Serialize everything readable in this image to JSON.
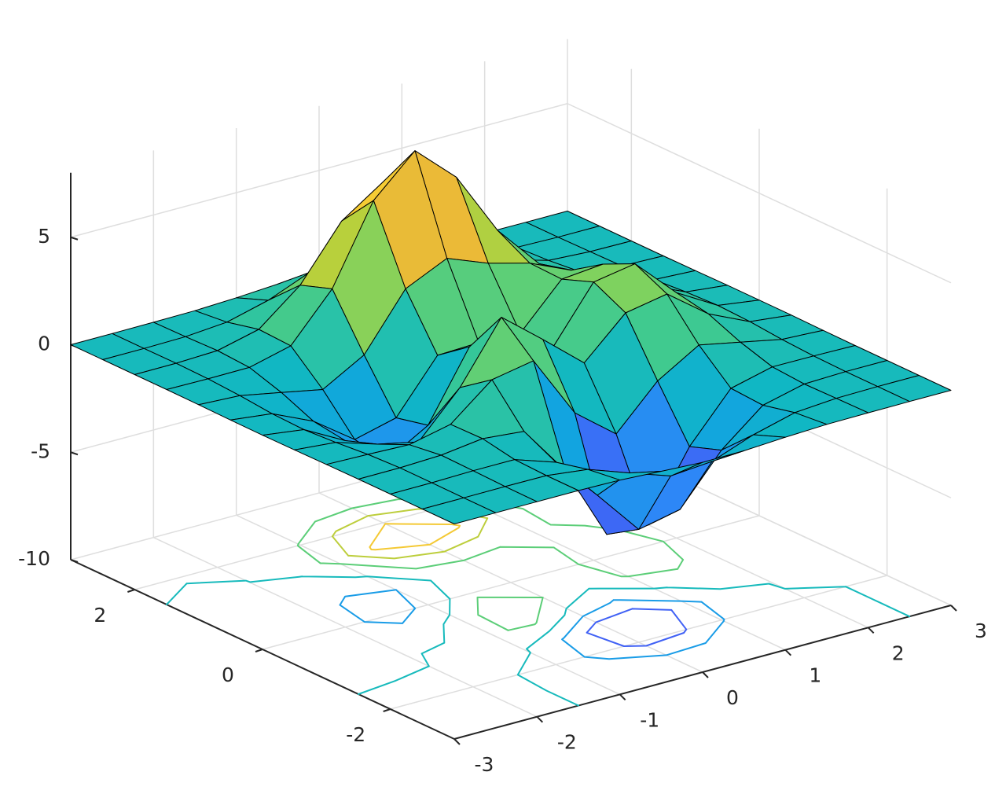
{
  "chart_data": {
    "type": "surfc",
    "x": [
      -3,
      -2.5,
      -2,
      -1.5,
      -1,
      -0.5,
      0,
      0.5,
      1,
      1.5,
      2,
      2.5,
      3
    ],
    "y": [
      -3,
      -2.5,
      -2,
      -1.5,
      -1,
      -0.5,
      0,
      0.5,
      1,
      1.5,
      2,
      2.5,
      3
    ],
    "z": [
      [
        0,
        0,
        0,
        0,
        -0.03,
        -0.14,
        -0.24,
        -0.22,
        -0.11,
        -0.03,
        -0.01,
        0,
        0
      ],
      [
        0,
        0,
        0.01,
        0,
        -0.23,
        -0.91,
        -1.57,
        -1.41,
        -0.69,
        -0.18,
        -0.03,
        0,
        0
      ],
      [
        0,
        0.01,
        0.05,
        0.05,
        -0.59,
        -2.64,
        -4.75,
        -4.34,
        -2.1,
        -0.53,
        -0.06,
        0,
        0
      ],
      [
        0,
        0.01,
        0.08,
        0.33,
        0.15,
        -2.19,
        -5.68,
        -5.76,
        -2.63,
        -0.44,
        0.04,
        0.03,
        0
      ],
      [
        -0.01,
        -0.06,
        -0.13,
        0.3,
        1.86,
        2.22,
        -0.72,
        -2.22,
        -0.27,
        0.88,
        0.5,
        0.11,
        0.01
      ],
      [
        -0.03,
        -0.2,
        -0.8,
        -1.21,
        0.8,
        3.55,
        2,
        0.39,
        2.2,
        2.56,
        1.12,
        0.24,
        0.03
      ],
      [
        -0.04,
        -0.3,
        -1.33,
        -2.77,
        -1.65,
        1.48,
        0.98,
        0.37,
        2.94,
        3.27,
        1.41,
        0.3,
        0.03
      ],
      [
        -0.03,
        -0.25,
        -1.12,
        -2.49,
        -2,
        0.39,
        0.46,
        0.38,
        2.38,
        2.56,
        1.09,
        0.23,
        0.03
      ],
      [
        -0.01,
        -0.11,
        -0.48,
        -0.86,
        0.23,
        2.79,
        3.69,
        2.94,
        2.43,
        1.58,
        0.58,
        0.11,
        0.01
      ],
      [
        0,
        -0.02,
        -0.01,
        0.48,
        2.61,
        6.2,
        8,
        6.25,
        3.25,
        1.19,
        0.29,
        0.05,
        0
      ],
      [
        0,
        0.01,
        0.08,
        0.55,
        2.09,
        4.55,
        5.85,
        4.56,
        2.21,
        0.68,
        0.13,
        0.02,
        0
      ],
      [
        0,
        0,
        0.03,
        0.19,
        0.69,
        1.47,
        1.89,
        1.47,
        0.7,
        0.21,
        0.04,
        0,
        0
      ],
      [
        0,
        0,
        0.01,
        0.03,
        0.11,
        0.23,
        0.3,
        0.23,
        0.11,
        0.03,
        0.01,
        0,
        0
      ]
    ],
    "xlim": [
      -3,
      3
    ],
    "ylim": [
      -3,
      3
    ],
    "zlim": [
      -10,
      8
    ],
    "xticks": [
      -3,
      -2,
      -1,
      0,
      1,
      2,
      3
    ],
    "yticks": [
      -2,
      0,
      2
    ],
    "zticks": [
      -10,
      -5,
      0,
      5
    ],
    "contour_levels": [
      -6,
      -4,
      -2,
      0,
      2,
      4,
      6
    ],
    "grid": true,
    "edge_color": "#000000",
    "colormap": [
      "#3e26a8",
      "#4852f4",
      "#2d87f7",
      "#12a3e1",
      "#10b7c4",
      "#37c897",
      "#71d267",
      "#b8d03c",
      "#ecba37",
      "#fbd532",
      "#f9fb0e"
    ]
  }
}
